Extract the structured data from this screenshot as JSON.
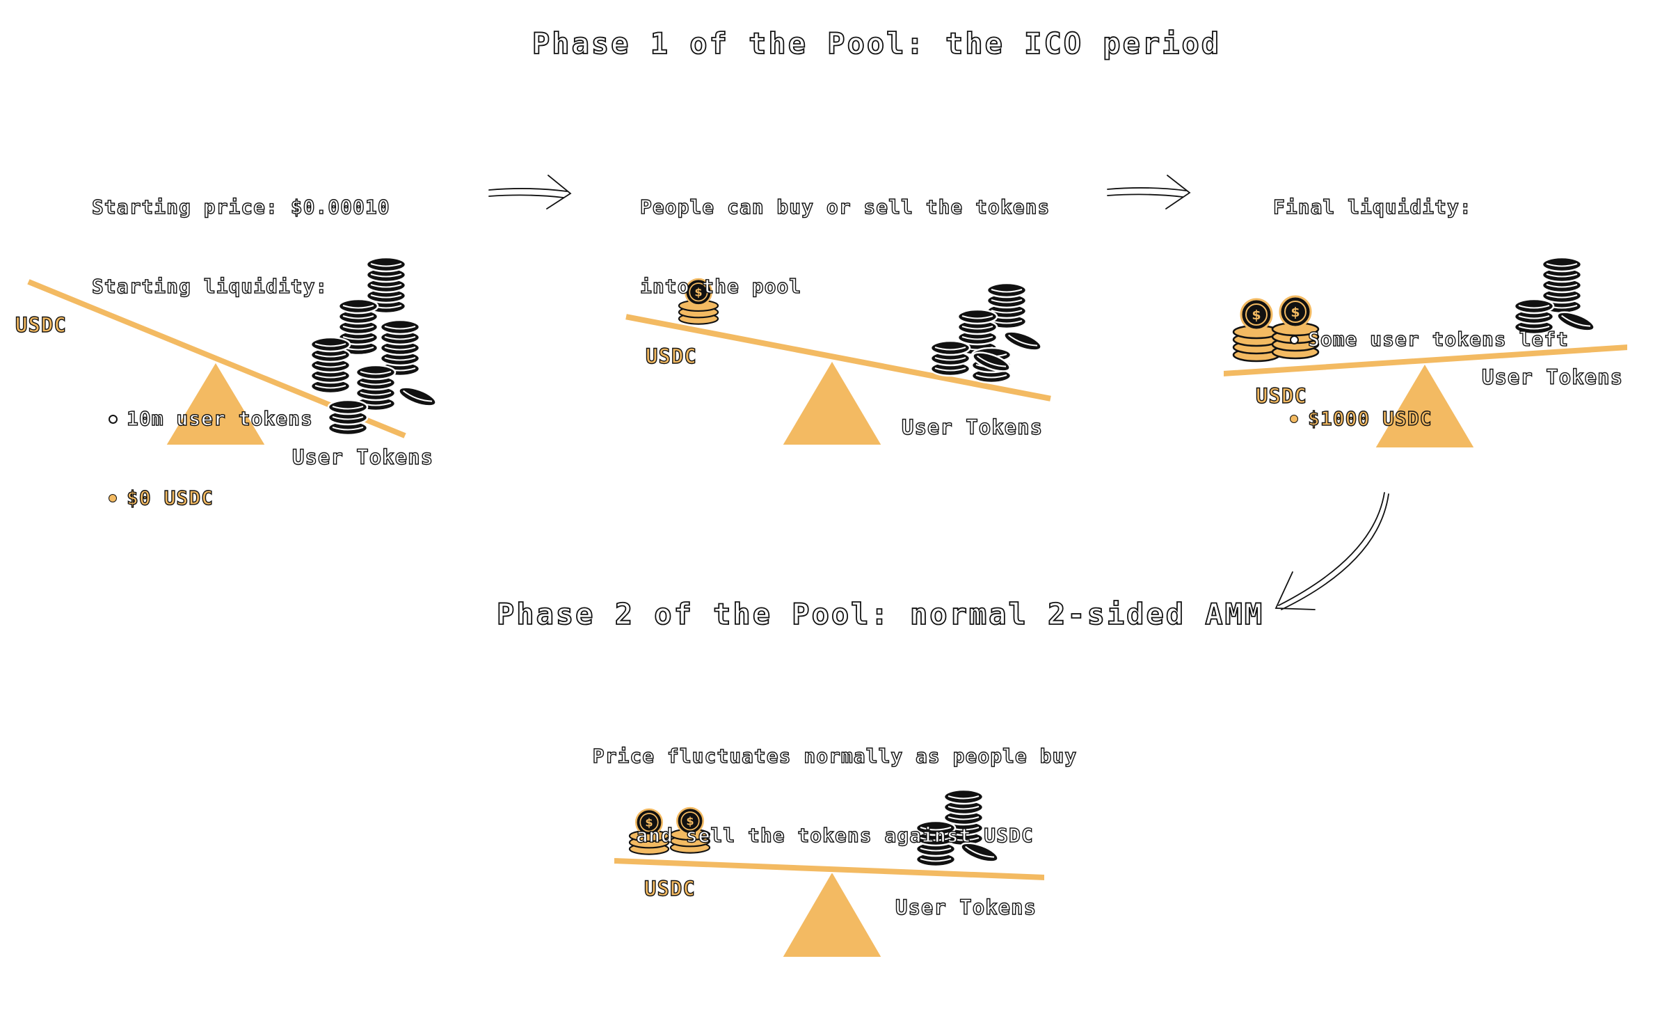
{
  "colors": {
    "accent": "#f3ba62",
    "ink": "#111111",
    "background": "#ffffff"
  },
  "phase1": {
    "title": "Phase 1 of the Pool: the ICO period",
    "step1": {
      "line1": "Starting price: $0.00010",
      "line2": "Starting liquidity:",
      "bullet1": "10m user tokens",
      "bullet2": "$0 USDC",
      "usdc_label": "USDC",
      "tokens_label": "User Tokens"
    },
    "step2": {
      "line1": "People can buy or sell the tokens",
      "line2": "into the pool",
      "usdc_label": "USDC",
      "tokens_label": "User Tokens"
    },
    "step3": {
      "line1": "Final liquidity:",
      "bullet1": "Some user tokens left",
      "bullet2": "$1000 USDC",
      "usdc_label": "USDC",
      "tokens_label": "User Tokens"
    }
  },
  "phase2": {
    "title": "Phase 2 of the Pool: normal 2-sided AMM",
    "line1": "Price fluctuates normally as people buy",
    "line2": "and sell the tokens against USDC",
    "usdc_label": "USDC",
    "tokens_label": "User Tokens"
  },
  "icons": [
    "arrow-right-icon",
    "curved-arrow-down-icon",
    "coin-stack-icon",
    "usdc-coin-stack-icon",
    "seesaw-icon"
  ]
}
